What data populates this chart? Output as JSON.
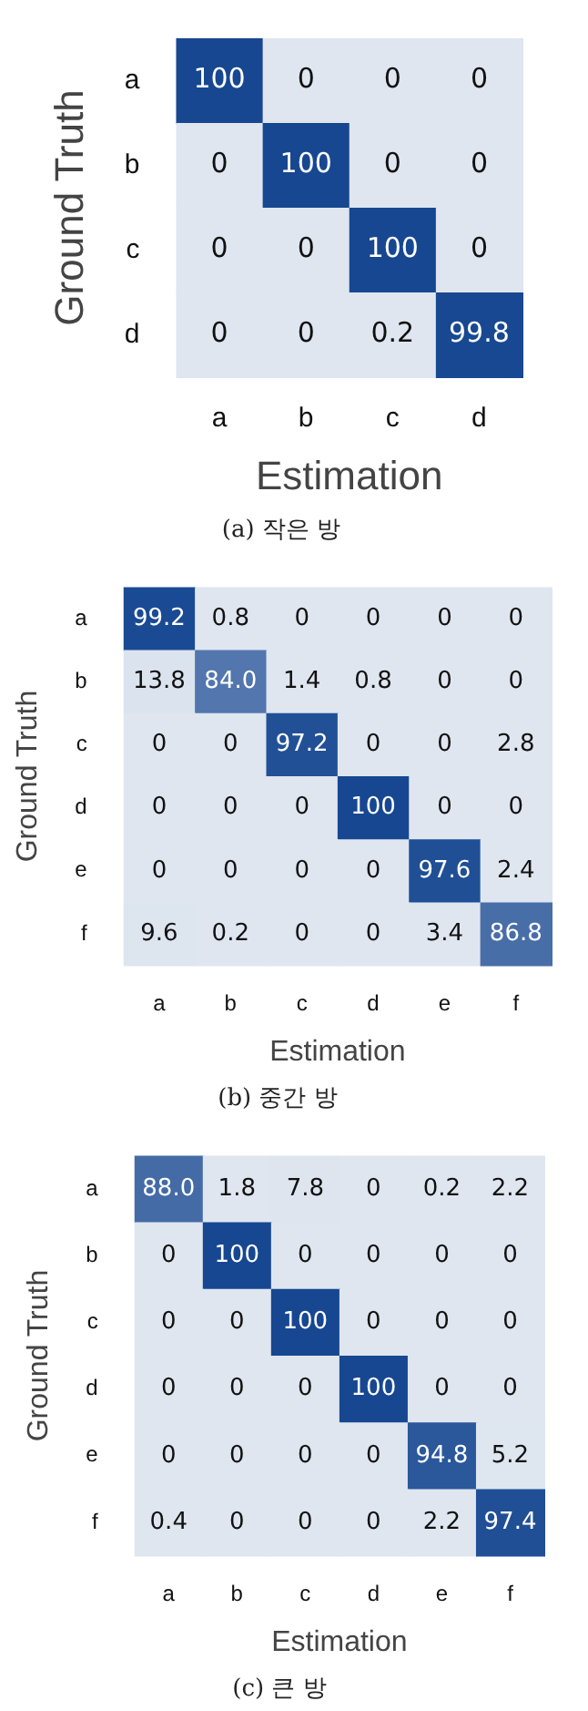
{
  "chart_data": [
    {
      "type": "heatmap",
      "title": "(a) 작은 방",
      "xlabel": "Estimation",
      "ylabel": "Ground Truth",
      "categories": [
        "a",
        "b",
        "c",
        "d"
      ],
      "y_categories": [
        "a",
        "b",
        "c",
        "d"
      ],
      "cells": [
        [
          100,
          0,
          0,
          0
        ],
        [
          0,
          100,
          0,
          0
        ],
        [
          0,
          0,
          100,
          0
        ],
        [
          0,
          0,
          0.2,
          99.8
        ]
      ],
      "grid": false,
      "data_labels": true
    },
    {
      "type": "heatmap",
      "title": "(b) 중간 방",
      "xlabel": "Estimation",
      "ylabel": "Ground Truth",
      "categories": [
        "a",
        "b",
        "c",
        "d",
        "e",
        "f"
      ],
      "y_categories": [
        "a",
        "b",
        "c",
        "d",
        "e",
        "f"
      ],
      "cells": [
        [
          99.2,
          0.8,
          0,
          0,
          0,
          0
        ],
        [
          13.8,
          84.0,
          1.4,
          0.8,
          0,
          0
        ],
        [
          0,
          0,
          97.2,
          0,
          0,
          2.8
        ],
        [
          0,
          0,
          0,
          100,
          0,
          0
        ],
        [
          0,
          0,
          0,
          0,
          97.6,
          2.4
        ],
        [
          9.6,
          0.2,
          0,
          0,
          3.4,
          86.8
        ]
      ],
      "cell_labels": [
        [
          "99.2",
          "0.8",
          "0",
          "0",
          "0",
          "0"
        ],
        [
          "13.8",
          "84.0",
          "1.4",
          "0.8",
          "0",
          "0"
        ],
        [
          "0",
          "0",
          "97.2",
          "0",
          "0",
          "2.8"
        ],
        [
          "0",
          "0",
          "0",
          "100",
          "0",
          "0"
        ],
        [
          "0",
          "0",
          "0",
          "0",
          "97.6",
          "2.4"
        ],
        [
          "9.6",
          "0.2",
          "0",
          "0",
          "3.4",
          "86.8"
        ]
      ]
    },
    {
      "type": "heatmap",
      "title": "(c) 큰 방",
      "xlabel": "Estimation",
      "ylabel": "Ground Truth",
      "categories": [
        "a",
        "b",
        "c",
        "d",
        "e",
        "f"
      ],
      "y_categories": [
        "a",
        "b",
        "c",
        "d",
        "e",
        "f"
      ],
      "cells": [
        [
          88.0,
          1.8,
          7.8,
          0,
          0.2,
          2.2
        ],
        [
          0,
          100,
          0,
          0,
          0,
          0
        ],
        [
          0,
          0,
          100,
          0,
          0,
          0
        ],
        [
          0,
          0,
          0,
          100,
          0,
          0
        ],
        [
          0,
          0,
          0,
          0,
          94.8,
          5.2
        ],
        [
          0.4,
          0,
          0,
          0,
          2.2,
          97.4
        ]
      ],
      "cell_labels": [
        [
          "88.0",
          "1.8",
          "7.8",
          "0",
          "0.2",
          "2.2"
        ],
        [
          "0",
          "100",
          "0",
          "0",
          "0",
          "0"
        ],
        [
          "0",
          "0",
          "100",
          "0",
          "0",
          "0"
        ],
        [
          "0",
          "0",
          "0",
          "100",
          "0",
          "0"
        ],
        [
          "0",
          "0",
          "0",
          "0",
          "94.8",
          "5.2"
        ],
        [
          "0.4",
          "0",
          "0",
          "0",
          "2.2",
          "97.4"
        ]
      ]
    }
  ]
}
